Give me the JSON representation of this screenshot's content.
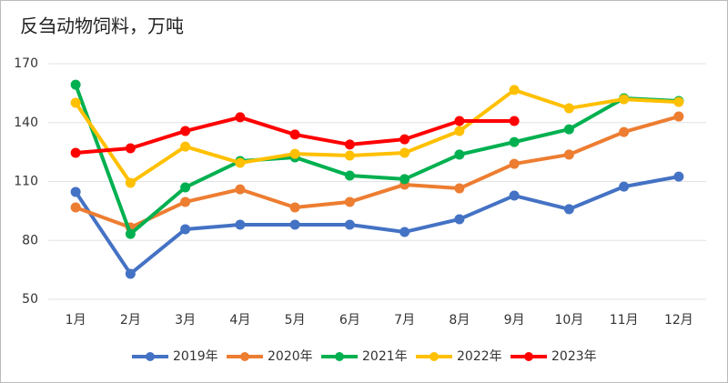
{
  "chart_data": {
    "type": "line",
    "title": "反刍动物饲料，万吨",
    "categories": [
      "1月",
      "2月",
      "3月",
      "4月",
      "5月",
      "6月",
      "7月",
      "8月",
      "9月",
      "10月",
      "11月",
      "12月"
    ],
    "series": [
      {
        "name": "2019年",
        "color": "#4472c4",
        "values": [
          104.7,
          63,
          85.7,
          88,
          88,
          88,
          84.3,
          90.8,
          102.8,
          95.9,
          107.4,
          112.5
        ]
      },
      {
        "name": "2020年",
        "color": "#ed7d31",
        "values": [
          96.8,
          86.6,
          99.6,
          106,
          96.8,
          99.6,
          108.4,
          106.5,
          119,
          123.7,
          135.2,
          143.1
        ]
      },
      {
        "name": "2021年",
        "color": "#00b050",
        "values": [
          159.3,
          83.3,
          107,
          120.4,
          122.3,
          113,
          111.2,
          123.7,
          130.1,
          136.6,
          152.4,
          151
        ]
      },
      {
        "name": "2022年",
        "color": "#ffc000",
        "values": [
          150.1,
          109.3,
          127.8,
          119.5,
          124.1,
          123.2,
          124.6,
          135.7,
          156.6,
          147.3,
          151.9,
          150.5
        ]
      },
      {
        "name": "2023年",
        "color": "#ff0000",
        "values": [
          124.6,
          126.9,
          135.7,
          142.7,
          133.9,
          128.8,
          131.5,
          140.8,
          140.8,
          null,
          null,
          null
        ]
      }
    ],
    "ylim": [
      50,
      170
    ],
    "yticks": [
      50,
      80,
      110,
      140,
      170
    ],
    "grid": true,
    "legend": "bottom"
  }
}
